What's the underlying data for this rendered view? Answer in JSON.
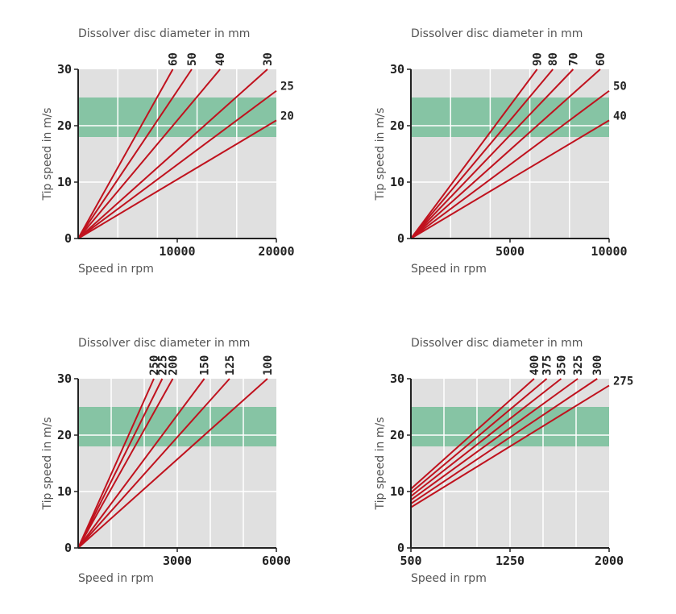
{
  "colors": {
    "plot_bg": "#e0e0e0",
    "band": "#86c4a4",
    "grid": "#ffffff",
    "line": "#c0121e",
    "axis": "#222222"
  },
  "chart_data": [
    {
      "type": "line",
      "title": "Dissolver disc diameter  in mm",
      "xlabel": "Speed in rpm",
      "ylabel": "Tip speed in m/s",
      "xlim": [
        0,
        20000
      ],
      "ylim": [
        0,
        30
      ],
      "xticks": [
        {
          "v": 10000,
          "label": "10000"
        },
        {
          "v": 20000,
          "label": "20000"
        }
      ],
      "xgrid": [
        4000,
        8000,
        12000,
        16000
      ],
      "yticks": [
        {
          "v": 0,
          "label": "0"
        },
        {
          "v": 10,
          "label": "10"
        },
        {
          "v": 20,
          "label": "20"
        },
        {
          "v": 30,
          "label": "30"
        }
      ],
      "band": [
        18,
        25
      ],
      "series": [
        {
          "name": "60",
          "diameter_mm": 60,
          "label_pos": "top"
        },
        {
          "name": "50",
          "diameter_mm": 50,
          "label_pos": "top"
        },
        {
          "name": "40",
          "diameter_mm": 40,
          "label_pos": "top"
        },
        {
          "name": "30",
          "diameter_mm": 30,
          "label_pos": "top"
        },
        {
          "name": "25",
          "diameter_mm": 25,
          "label_pos": "right"
        },
        {
          "name": "20",
          "diameter_mm": 20,
          "label_pos": "right"
        }
      ]
    },
    {
      "type": "line",
      "title": "Dissolver disc diameter  in mm",
      "xlabel": "Speed in rpm",
      "ylabel": "Tip speed in m/s",
      "xlim": [
        0,
        10000
      ],
      "ylim": [
        0,
        30
      ],
      "xticks": [
        {
          "v": 5000,
          "label": "5000"
        },
        {
          "v": 10000,
          "label": "10000"
        }
      ],
      "xgrid": [
        2000,
        4000,
        6000,
        8000
      ],
      "yticks": [
        {
          "v": 0,
          "label": "0"
        },
        {
          "v": 10,
          "label": "10"
        },
        {
          "v": 20,
          "label": "20"
        },
        {
          "v": 30,
          "label": "30"
        }
      ],
      "band": [
        18,
        25
      ],
      "series": [
        {
          "name": "90",
          "diameter_mm": 90,
          "label_pos": "top"
        },
        {
          "name": "80",
          "diameter_mm": 80,
          "label_pos": "top"
        },
        {
          "name": "70",
          "diameter_mm": 70,
          "label_pos": "top"
        },
        {
          "name": "60",
          "diameter_mm": 60,
          "label_pos": "top"
        },
        {
          "name": "50",
          "diameter_mm": 50,
          "label_pos": "right"
        },
        {
          "name": "40",
          "diameter_mm": 40,
          "label_pos": "right"
        }
      ]
    },
    {
      "type": "line",
      "title": "Dissolver disc diameter  in mm",
      "xlabel": "Speed in rpm",
      "ylabel": "Tip speed in m/s",
      "xlim": [
        0,
        6000
      ],
      "ylim": [
        0,
        30
      ],
      "xticks": [
        {
          "v": 3000,
          "label": "3000"
        },
        {
          "v": 6000,
          "label": "6000"
        }
      ],
      "xgrid": [
        1000,
        2000,
        3000,
        4000,
        5000
      ],
      "yticks": [
        {
          "v": 0,
          "label": "0"
        },
        {
          "v": 10,
          "label": "10"
        },
        {
          "v": 20,
          "label": "20"
        },
        {
          "v": 30,
          "label": "30"
        }
      ],
      "band": [
        18,
        25
      ],
      "series": [
        {
          "name": "250",
          "diameter_mm": 250,
          "label_pos": "top"
        },
        {
          "name": "225",
          "diameter_mm": 225,
          "label_pos": "top"
        },
        {
          "name": "200",
          "diameter_mm": 200,
          "label_pos": "top"
        },
        {
          "name": "150",
          "diameter_mm": 150,
          "label_pos": "top"
        },
        {
          "name": "125",
          "diameter_mm": 125,
          "label_pos": "top"
        },
        {
          "name": "100",
          "diameter_mm": 100,
          "label_pos": "top"
        }
      ]
    },
    {
      "type": "line",
      "title": "Dissolver disc diameter  in mm",
      "xlabel": "Speed in rpm",
      "ylabel": "Tip speed in m/s",
      "xlim": [
        500,
        2000
      ],
      "ylim": [
        0,
        30
      ],
      "xticks": [
        {
          "v": 500,
          "label": "500"
        },
        {
          "v": 1250,
          "label": "1250"
        },
        {
          "v": 2000,
          "label": "2000"
        }
      ],
      "xgrid": [
        750,
        1000,
        1250,
        1500,
        1750
      ],
      "yticks": [
        {
          "v": 0,
          "label": "0"
        },
        {
          "v": 10,
          "label": "10"
        },
        {
          "v": 20,
          "label": "20"
        },
        {
          "v": 30,
          "label": "30"
        }
      ],
      "band": [
        18,
        25
      ],
      "series": [
        {
          "name": "400",
          "diameter_mm": 400,
          "label_pos": "top"
        },
        {
          "name": "375",
          "diameter_mm": 375,
          "label_pos": "top"
        },
        {
          "name": "350",
          "diameter_mm": 350,
          "label_pos": "top"
        },
        {
          "name": "325",
          "diameter_mm": 325,
          "label_pos": "top"
        },
        {
          "name": "300",
          "diameter_mm": 300,
          "label_pos": "top"
        },
        {
          "name": "275",
          "diameter_mm": 275,
          "label_pos": "right"
        }
      ]
    }
  ]
}
